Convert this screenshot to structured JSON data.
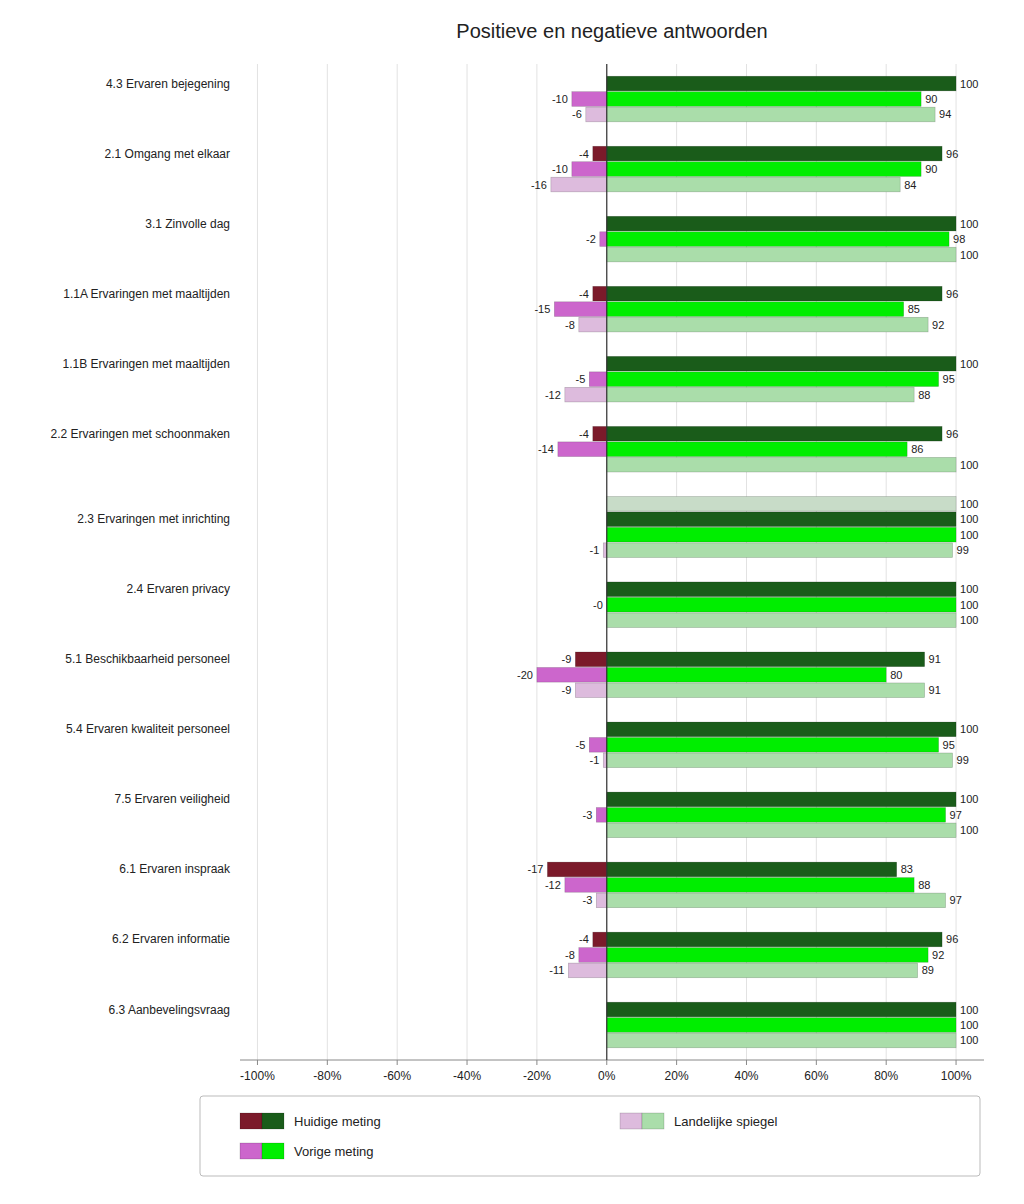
{
  "chart_data": {
    "type": "bar",
    "orientation": "horizontal",
    "title": "Positieve en negatieve antwoorden",
    "categories": [
      "4.3 Ervaren bejegening",
      "2.1 Omgang met elkaar",
      "3.1 Zinvolle dag",
      "1.1A Ervaringen met maaltijden",
      "1.1B Ervaringen met maaltijden",
      "2.2 Ervaringen met schoonmaken",
      "2.3 Ervaringen met inrichting",
      "2.4 Ervaren privacy",
      "5.1 Beschikbaarheid personeel",
      "5.4 Ervaren kwaliteit personeel",
      "7.5 Ervaren veiligheid",
      "6.1 Ervaren inspraak",
      "6.2 Ervaren informatie",
      "6.3 Aanbevelingsvraag"
    ],
    "series": [
      {
        "color": "#ddbbdd",
        "values": [
          null,
          null,
          null,
          null,
          null,
          null,
          0,
          null,
          null,
          null,
          null,
          null,
          null,
          null
        ],
        "value_labels": [
          null,
          null,
          null,
          null,
          null,
          null,
          null,
          null,
          null,
          null,
          null,
          null,
          null,
          null
        ]
      },
      {
        "color": "#c8dcc8",
        "values": [
          null,
          null,
          null,
          null,
          null,
          null,
          100,
          null,
          null,
          null,
          null,
          null,
          null,
          null
        ]
      },
      {
        "name": "Huidige meting",
        "color": "#7b1a2a",
        "values": [
          0,
          -4,
          0,
          -4,
          0,
          -4,
          0,
          0,
          -9,
          0,
          0,
          -17,
          -4,
          0
        ],
        "value_labels": [
          null,
          "-4",
          null,
          "-4",
          null,
          "-4",
          null,
          null,
          "-9",
          null,
          null,
          "-17",
          "-4",
          null
        ]
      },
      {
        "name": "Huidige meting",
        "color": "#1a5c1a",
        "values": [
          100,
          96,
          100,
          96,
          100,
          96,
          100,
          100,
          91,
          100,
          100,
          83,
          96,
          100
        ]
      },
      {
        "name": "Vorige meting",
        "color": "#cc66cc",
        "values": [
          -10,
          -10,
          -2,
          -15,
          -5,
          -14,
          0,
          0,
          -20,
          -5,
          -3,
          -12,
          -8,
          0
        ],
        "value_labels": [
          "-10",
          "-10",
          "-2",
          "-15",
          "-5",
          "-14",
          null,
          "-0",
          "-20",
          "-5",
          "-3",
          "-12",
          "-8",
          null
        ]
      },
      {
        "name": "Vorige meting",
        "color": "#00ee00",
        "values": [
          90,
          90,
          98,
          85,
          95,
          86,
          100,
          100,
          80,
          95,
          97,
          88,
          92,
          100
        ]
      },
      {
        "name": "Landelijke spiegel",
        "color": "#ddbbdd",
        "values": [
          -6,
          -16,
          0,
          -8,
          -12,
          0,
          -1,
          0,
          -9,
          -1,
          0,
          -3,
          -11,
          0
        ],
        "value_labels": [
          "-6",
          "-16",
          null,
          "-8",
          "-12",
          null,
          "-1",
          null,
          "-9",
          "-1",
          null,
          "-3",
          "-11",
          null
        ]
      },
      {
        "name": "Landelijke spiegel",
        "color": "#aaddaa",
        "values": [
          94,
          84,
          100,
          92,
          88,
          100,
          99,
          100,
          91,
          99,
          100,
          97,
          89,
          100
        ]
      }
    ],
    "xlim": [
      -105,
      108
    ],
    "xticks": [
      {
        "value": -100,
        "label": "-100%"
      },
      {
        "value": -80,
        "label": "-80%"
      },
      {
        "value": -60,
        "label": "-60%"
      },
      {
        "value": -40,
        "label": "-40%"
      },
      {
        "value": -20,
        "label": "-20%"
      },
      {
        "value": 0,
        "label": "0%"
      },
      {
        "value": 20,
        "label": "20%"
      },
      {
        "value": 40,
        "label": "40%"
      },
      {
        "value": 60,
        "label": "60%"
      },
      {
        "value": 80,
        "label": "80%"
      },
      {
        "value": 100,
        "label": "100%"
      }
    ],
    "grid": true,
    "data_labels": true
  }
}
